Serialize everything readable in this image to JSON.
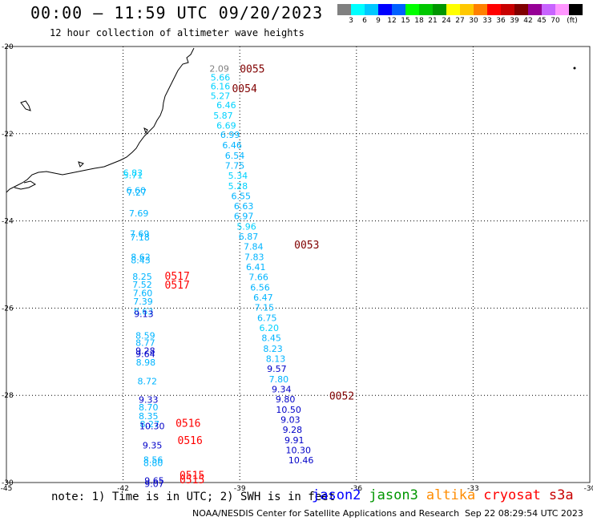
{
  "header": {
    "title": "00:00 – 11:59 UTC 09/20/2023",
    "subtitle": "12 hour collection of altimeter wave heights"
  },
  "legend": {
    "colors": [
      "#808080",
      "#00ffff",
      "#00c8ff",
      "#0000ff",
      "#0060ff",
      "#00ff00",
      "#00c800",
      "#009600",
      "#ffff00",
      "#ffc800",
      "#ff8000",
      "#ff0000",
      "#c80000",
      "#800000",
      "#960096",
      "#c864ff",
      "#ff96ff",
      "#000000"
    ],
    "labels": [
      "3",
      "6",
      "9",
      "12",
      "15",
      "18",
      "21",
      "24",
      "27",
      "30",
      "33",
      "36",
      "39",
      "42",
      "45",
      "70",
      "(ft)"
    ]
  },
  "axes": {
    "lat_labels": [
      "-20",
      "-22",
      "-24",
      "-26",
      "-28",
      "-30"
    ],
    "lon_labels": [
      "-45",
      "-42",
      "-39",
      "-36",
      "-33",
      "-30"
    ]
  },
  "passes": [
    {
      "id": "0055",
      "lon": -39.0,
      "lat": -20.6,
      "color": "#800000"
    },
    {
      "id": "0054",
      "lon": -39.2,
      "lat": -21.05,
      "color": "#800000"
    },
    {
      "id": "0053",
      "lon": -37.6,
      "lat": -24.63,
      "color": "#800000"
    },
    {
      "id": "0517",
      "lon": -40.93,
      "lat": -25.35,
      "color": "#ff0000"
    },
    {
      "id": "0517",
      "lon": -40.93,
      "lat": -25.55,
      "color": "#ff0000"
    },
    {
      "id": "0052",
      "lon": -36.7,
      "lat": -28.1,
      "color": "#800000"
    },
    {
      "id": "0516",
      "lon": -40.65,
      "lat": -28.72,
      "color": "#ff0000"
    },
    {
      "id": "0516",
      "lon": -40.6,
      "lat": -29.12,
      "color": "#ff0000"
    },
    {
      "id": "0515",
      "lon": -40.55,
      "lat": -29.92,
      "color": "#ff0000"
    },
    {
      "id": "0515",
      "lon": -40.55,
      "lat": -30.02,
      "color": "#ff0000"
    }
  ],
  "swh": [
    {
      "v": "2.09",
      "lon": -39.78,
      "lat": -20.58,
      "color": "#808080"
    },
    {
      "v": "5.66",
      "lon": -39.75,
      "lat": -20.78,
      "color": "#00d2ff"
    },
    {
      "v": "6.16",
      "lon": -39.75,
      "lat": -20.98,
      "color": "#00d2ff"
    },
    {
      "v": "5.27",
      "lon": -39.75,
      "lat": -21.2,
      "color": "#00d2ff"
    },
    {
      "v": "6.46",
      "lon": -39.6,
      "lat": -21.42,
      "color": "#00d2ff"
    },
    {
      "v": "5.87",
      "lon": -39.68,
      "lat": -21.65,
      "color": "#00d2ff"
    },
    {
      "v": "6.69",
      "lon": -39.6,
      "lat": -21.88,
      "color": "#00d2ff"
    },
    {
      "v": "6.99",
      "lon": -39.5,
      "lat": -22.1,
      "color": "#00b4ff"
    },
    {
      "v": "6.46",
      "lon": -39.45,
      "lat": -22.33,
      "color": "#00b4ff"
    },
    {
      "v": "6.54",
      "lon": -39.38,
      "lat": -22.57,
      "color": "#00b4ff"
    },
    {
      "v": "7.75",
      "lon": -39.38,
      "lat": -22.8,
      "color": "#00b4ff"
    },
    {
      "v": "5.34",
      "lon": -39.3,
      "lat": -23.03,
      "color": "#00d2ff"
    },
    {
      "v": "5.28",
      "lon": -39.3,
      "lat": -23.27,
      "color": "#00d2ff"
    },
    {
      "v": "6.55",
      "lon": -39.22,
      "lat": -23.5,
      "color": "#00b4ff"
    },
    {
      "v": "6.63",
      "lon": -39.15,
      "lat": -23.73,
      "color": "#00b4ff"
    },
    {
      "v": "6.97",
      "lon": -39.15,
      "lat": -23.96,
      "color": "#00b4ff"
    },
    {
      "v": "5.96",
      "lon": -39.08,
      "lat": -24.2,
      "color": "#00d2ff"
    },
    {
      "v": "6.87",
      "lon": -39.03,
      "lat": -24.43,
      "color": "#00b4ff"
    },
    {
      "v": "7.84",
      "lon": -38.9,
      "lat": -24.66,
      "color": "#00b4ff"
    },
    {
      "v": "7.83",
      "lon": -38.88,
      "lat": -24.9,
      "color": "#00b4ff"
    },
    {
      "v": "6.41",
      "lon": -38.84,
      "lat": -25.13,
      "color": "#00b4ff"
    },
    {
      "v": "7.66",
      "lon": -38.77,
      "lat": -25.36,
      "color": "#00b4ff"
    },
    {
      "v": "6.56",
      "lon": -38.73,
      "lat": -25.6,
      "color": "#00b4ff"
    },
    {
      "v": "6.47",
      "lon": -38.65,
      "lat": -25.83,
      "color": "#00b4ff"
    },
    {
      "v": "7.15",
      "lon": -38.62,
      "lat": -26.06,
      "color": "#00b4ff"
    },
    {
      "v": "6.75",
      "lon": -38.55,
      "lat": -26.3,
      "color": "#00b4ff"
    },
    {
      "v": "6.20",
      "lon": -38.5,
      "lat": -26.53,
      "color": "#00d2ff"
    },
    {
      "v": "8.45",
      "lon": -38.44,
      "lat": -26.76,
      "color": "#00b4ff"
    },
    {
      "v": "8.23",
      "lon": -38.4,
      "lat": -27.0,
      "color": "#00b4ff"
    },
    {
      "v": "8.13",
      "lon": -38.33,
      "lat": -27.23,
      "color": "#00b4ff"
    },
    {
      "v": "9.57",
      "lon": -38.3,
      "lat": -27.46,
      "color": "#0000c8"
    },
    {
      "v": "7.80",
      "lon": -38.25,
      "lat": -27.7,
      "color": "#00b4ff"
    },
    {
      "v": "9.34",
      "lon": -38.18,
      "lat": -27.93,
      "color": "#0000c8"
    },
    {
      "v": "9.80",
      "lon": -38.08,
      "lat": -28.16,
      "color": "#0000c8"
    },
    {
      "v": "10.50",
      "lon": -38.07,
      "lat": -28.4,
      "color": "#0000c8"
    },
    {
      "v": "9.03",
      "lon": -37.95,
      "lat": -28.63,
      "color": "#0000c8"
    },
    {
      "v": "9.28",
      "lon": -37.9,
      "lat": -28.86,
      "color": "#0000c8"
    },
    {
      "v": "9.91",
      "lon": -37.85,
      "lat": -29.1,
      "color": "#0000c8"
    },
    {
      "v": "10.30",
      "lon": -37.82,
      "lat": -29.33,
      "color": "#0000c8"
    },
    {
      "v": "10.46",
      "lon": -37.75,
      "lat": -29.56,
      "color": "#0000c8"
    },
    {
      "v": "6.83",
      "lon": -42.0,
      "lat": -22.97,
      "color": "#00d2ff"
    },
    {
      "v": "5.71",
      "lon": -42.0,
      "lat": -23.02,
      "color": "#00d2ff"
    },
    {
      "v": "6.60",
      "lon": -41.92,
      "lat": -23.37,
      "color": "#00b4ff"
    },
    {
      "v": "7.27",
      "lon": -41.9,
      "lat": -23.42,
      "color": "#00b4ff"
    },
    {
      "v": "7.69",
      "lon": -41.85,
      "lat": -23.9,
      "color": "#00b4ff"
    },
    {
      "v": "7.69",
      "lon": -41.83,
      "lat": -24.37,
      "color": "#00b4ff"
    },
    {
      "v": "7.18",
      "lon": -41.82,
      "lat": -24.45,
      "color": "#00b4ff"
    },
    {
      "v": "8.62",
      "lon": -41.8,
      "lat": -24.9,
      "color": "#00b4ff"
    },
    {
      "v": "8.43",
      "lon": -41.8,
      "lat": -24.97,
      "color": "#00b4ff"
    },
    {
      "v": "8.25",
      "lon": -41.76,
      "lat": -25.35,
      "color": "#00b4ff"
    },
    {
      "v": "7.52",
      "lon": -41.76,
      "lat": -25.53,
      "color": "#00b4ff"
    },
    {
      "v": "7.60",
      "lon": -41.75,
      "lat": -25.73,
      "color": "#00b4ff"
    },
    {
      "v": "7.39",
      "lon": -41.74,
      "lat": -25.92,
      "color": "#00b4ff"
    },
    {
      "v": "8.63",
      "lon": -41.73,
      "lat": -26.15,
      "color": "#00b4ff"
    },
    {
      "v": "9.13",
      "lon": -41.72,
      "lat": -26.2,
      "color": "#0000c8"
    },
    {
      "v": "8.59",
      "lon": -41.68,
      "lat": -26.7,
      "color": "#00b4ff"
    },
    {
      "v": "8.77",
      "lon": -41.68,
      "lat": -26.87,
      "color": "#00b4ff"
    },
    {
      "v": "9.28",
      "lon": -41.68,
      "lat": -27.05,
      "color": "#0000c8"
    },
    {
      "v": "9.64",
      "lon": -41.68,
      "lat": -27.12,
      "color": "#0000c8"
    },
    {
      "v": "8.98",
      "lon": -41.67,
      "lat": -27.32,
      "color": "#00b4ff"
    },
    {
      "v": "8.72",
      "lon": -41.63,
      "lat": -27.75,
      "color": "#00b4ff"
    },
    {
      "v": "9.33",
      "lon": -41.6,
      "lat": -28.17,
      "color": "#0000c8"
    },
    {
      "v": "8.70",
      "lon": -41.6,
      "lat": -28.35,
      "color": "#00b4ff"
    },
    {
      "v": "8.35",
      "lon": -41.6,
      "lat": -28.55,
      "color": "#00b4ff"
    },
    {
      "v": "8.27",
      "lon": -41.57,
      "lat": -28.73,
      "color": "#00b4ff"
    },
    {
      "v": "10.30",
      "lon": -41.58,
      "lat": -28.78,
      "color": "#0000c8"
    },
    {
      "v": "9.35",
      "lon": -41.5,
      "lat": -29.22,
      "color": "#0000c8"
    },
    {
      "v": "8.56",
      "lon": -41.48,
      "lat": -29.55,
      "color": "#00b4ff"
    },
    {
      "v": "8.80",
      "lon": -41.48,
      "lat": -29.62,
      "color": "#00b4ff"
    },
    {
      "v": "9.65",
      "lon": -41.45,
      "lat": -30.03,
      "color": "#0000c8"
    },
    {
      "v": "9.07",
      "lon": -41.45,
      "lat": -30.1,
      "color": "#0000c8"
    }
  ],
  "note": "note: 1) Time is in UTC; 2) SWH is in feet",
  "satellites": [
    {
      "name": "jason2",
      "color": "#0000ff"
    },
    {
      "name": "jason3",
      "color": "#009600"
    },
    {
      "name": "altika",
      "color": "#ff8c00"
    },
    {
      "name": "cryosat",
      "color": "#ff0000"
    },
    {
      "name": "s3a",
      "color": "#c80000"
    }
  ],
  "footer": {
    "credit": "NOAA/NESDIS Center for Satellite Applications and Research",
    "timestamp": "Sep 22 08:29:54 UTC 2023"
  }
}
